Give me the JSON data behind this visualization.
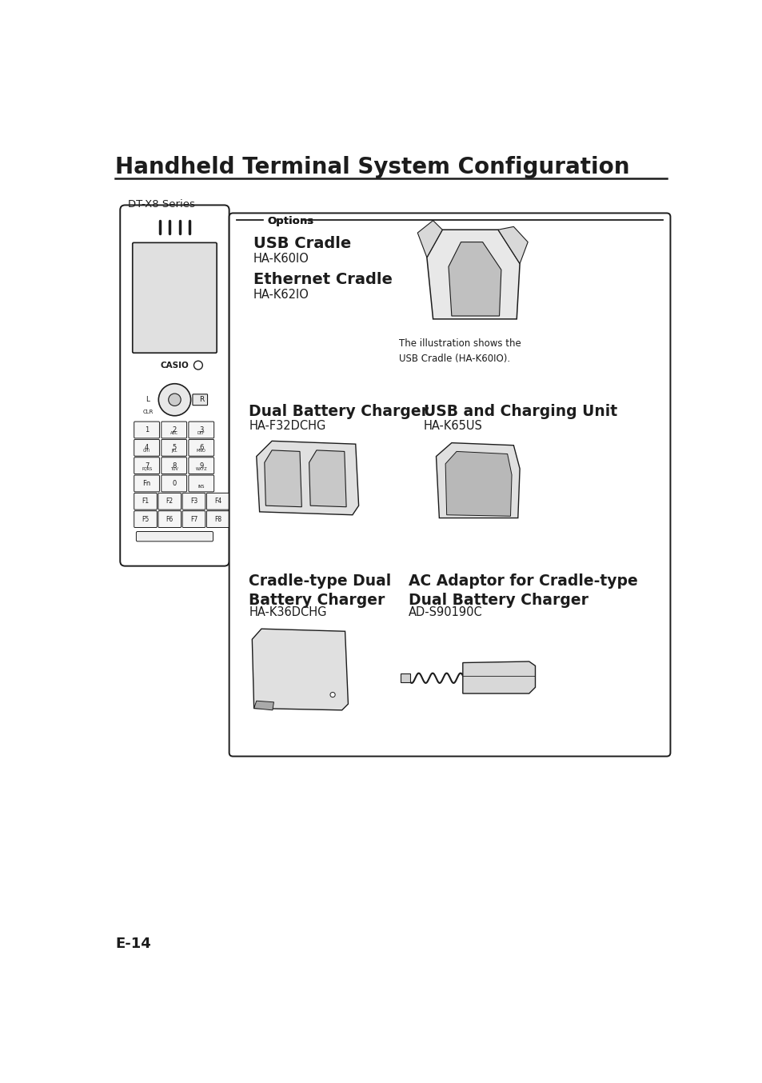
{
  "title": "Handheld Terminal System Configuration",
  "page_number": "E-14",
  "bg": "#ffffff",
  "tc": "#1c1c1c",
  "title_fs": 20,
  "subtitle": "DT-X8 Series",
  "options_label": "Options",
  "caption": "The illustration shows the\nUSB Cradle (HA-K60IO).",
  "sec1_name1": "USB Cradle",
  "sec1_model1": "HA-K60IO",
  "sec1_name2": "Ethernet Cradle",
  "sec1_model2": "HA-K62IO",
  "sec2_name1": "Dual Battery Charger",
  "sec2_model1": "HA-F32DCHG",
  "sec2_name2": "USB and Charging Unit",
  "sec2_model2": "HA-K65US",
  "sec3_name1": "Cradle-type Dual\nBattery Charger",
  "sec3_model1": "HA-K36DCHG",
  "sec3_name2": "AC Adaptor for Cradle-type\nDual Battery Charger",
  "sec3_model2": "AD-S90190C"
}
